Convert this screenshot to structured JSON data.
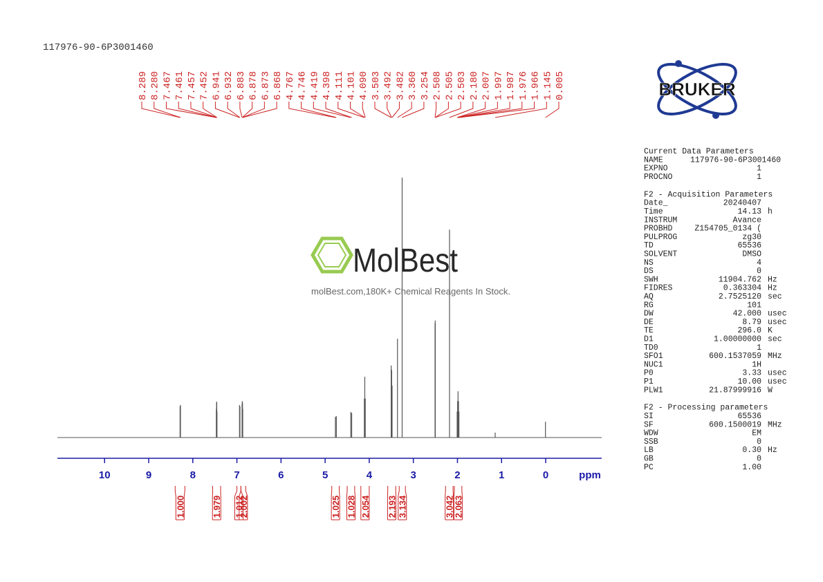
{
  "chart_data": {
    "type": "nmr",
    "title": "117976-90-6P3001460",
    "xlabel": "ppm",
    "xlim": [
      11.07,
      -1.27
    ],
    "xticks": [
      10,
      9,
      8,
      7,
      6,
      5,
      4,
      3,
      2,
      1,
      0
    ],
    "ylim": [
      0,
      100
    ],
    "color": "#555555",
    "label_color": "#cc2222",
    "axis_color": "#1a1aa8",
    "peaks": [
      {
        "value": 8.289,
        "label": "8.289"
      },
      {
        "value": 8.28,
        "label": "8.280"
      },
      {
        "value": 7.467,
        "label": "7.467"
      },
      {
        "value": 7.461,
        "label": "7.461"
      },
      {
        "value": 7.457,
        "label": "7.457"
      },
      {
        "value": 7.452,
        "label": "7.452"
      },
      {
        "value": 6.941,
        "label": "6.941"
      },
      {
        "value": 6.932,
        "label": "6.932"
      },
      {
        "value": 6.883,
        "label": "6.883"
      },
      {
        "value": 6.878,
        "label": "6.878"
      },
      {
        "value": 6.873,
        "label": "6.873"
      },
      {
        "value": 6.868,
        "label": "6.868"
      },
      {
        "value": 4.767,
        "label": "4.767"
      },
      {
        "value": 4.746,
        "label": "4.746"
      },
      {
        "value": 4.419,
        "label": "4.419"
      },
      {
        "value": 4.398,
        "label": "4.398"
      },
      {
        "value": 4.111,
        "label": "4.111"
      },
      {
        "value": 4.101,
        "label": "4.101"
      },
      {
        "value": 4.09,
        "label": "4.090"
      },
      {
        "value": 3.503,
        "label": "3.503"
      },
      {
        "value": 3.492,
        "label": "3.492"
      },
      {
        "value": 3.482,
        "label": "3.482"
      },
      {
        "value": 3.36,
        "label": "3.360"
      },
      {
        "value": 3.254,
        "label": "3.254"
      },
      {
        "value": 2.508,
        "label": "2.508"
      },
      {
        "value": 2.505,
        "label": "2.505"
      },
      {
        "value": 2.503,
        "label": "2.503"
      },
      {
        "value": 2.18,
        "label": "2.180"
      },
      {
        "value": 2.007,
        "label": "2.007"
      },
      {
        "value": 1.997,
        "label": "1.997"
      },
      {
        "value": 1.987,
        "label": "1.987"
      },
      {
        "value": 1.976,
        "label": "1.976"
      },
      {
        "value": 1.966,
        "label": "1.966"
      },
      {
        "value": 1.145,
        "label": "1.145"
      },
      {
        "value": 0.005,
        "label": "0.005"
      }
    ],
    "intensities": [
      12,
      12.5,
      11,
      13.8,
      13.5,
      10,
      12.5,
      12,
      13,
      14,
      13.5,
      11,
      8,
      8.2,
      9.8,
      9.5,
      15,
      23.4,
      15,
      27.7,
      26,
      20,
      38,
      100,
      44,
      45,
      44,
      80,
      10,
      14,
      17.8,
      14,
      10,
      1.9,
      6.1
    ],
    "integrals": [
      {
        "value": 1.0,
        "label": "1.000",
        "range": [
          8.4,
          8.18
        ]
      },
      {
        "value": 1.979,
        "label": "1.979",
        "range": [
          7.55,
          7.37
        ]
      },
      {
        "value": 1.012,
        "label": "1.012",
        "range": [
          7.0,
          6.91
        ]
      },
      {
        "value": 2.002,
        "label": "2.002",
        "range": [
          6.91,
          6.8
        ]
      },
      {
        "value": 1.025,
        "label": "1.025",
        "range": [
          4.85,
          4.68
        ]
      },
      {
        "value": 1.028,
        "label": "1.028",
        "range": [
          4.5,
          4.33
        ]
      },
      {
        "value": 2.054,
        "label": "2.054",
        "range": [
          4.19,
          4.0
        ]
      },
      {
        "value": 2.193,
        "label": "2.193",
        "range": [
          3.58,
          3.4
        ]
      },
      {
        "value": 3.134,
        "label": "3.134",
        "range": [
          3.32,
          3.18
        ]
      },
      {
        "value": 3.042,
        "label": "3.042",
        "range": [
          2.27,
          2.1
        ]
      },
      {
        "value": 2.063,
        "label": "2.063",
        "range": [
          2.07,
          1.9
        ]
      }
    ]
  },
  "logo": "BRUKER",
  "watermark": {
    "brand": "MolBest",
    "tagline": "molBest.com,180K+ Chemical Reagents In Stock."
  },
  "parameters": [
    {
      "title": "Current Data Parameters",
      "rows": [
        [
          "NAME",
          "117976-90-6P3001460"
        ],
        [
          "EXPNO",
          "1"
        ],
        [
          "PROCNO",
          "1"
        ]
      ]
    },
    {
      "title": "F2 - Acquisition Parameters",
      "rows": [
        [
          "Date_",
          "20240407"
        ],
        [
          "Time",
          "14.13",
          "h"
        ],
        [
          "INSTRUM",
          "Avance"
        ],
        [
          "PROBHD",
          "Z154705_0134 ("
        ],
        [
          "PULPROG",
          "zg30"
        ],
        [
          "TD",
          "65536"
        ],
        [
          "SOLVENT",
          "DMSO"
        ],
        [
          "NS",
          "4"
        ],
        [
          "DS",
          "0"
        ],
        [
          "SWH",
          "11904.762",
          "Hz"
        ],
        [
          "FIDRES",
          "0.363304",
          "Hz"
        ],
        [
          "AQ",
          "2.7525120",
          "sec"
        ],
        [
          "RG",
          "101"
        ],
        [
          "DW",
          "42.000",
          "usec"
        ],
        [
          "DE",
          "8.79",
          "usec"
        ],
        [
          "TE",
          "296.0",
          "K"
        ],
        [
          "D1",
          "1.00000000",
          "sec"
        ],
        [
          "TD0",
          "1"
        ],
        [
          "SFO1",
          "600.1537059",
          "MHz"
        ],
        [
          "NUC1",
          "1H"
        ],
        [
          "P0",
          "3.33",
          "usec"
        ],
        [
          "P1",
          "10.00",
          "usec"
        ],
        [
          "PLW1",
          "21.87999916",
          "W"
        ]
      ]
    },
    {
      "title": "F2 - Processing parameters",
      "rows": [
        [
          "SI",
          "65536"
        ],
        [
          "SF",
          "600.1500019",
          "MHz"
        ],
        [
          "WDW",
          "EM"
        ],
        [
          "SSB",
          "0"
        ],
        [
          "LB",
          "0.30",
          "Hz"
        ],
        [
          "GB",
          "0"
        ],
        [
          "PC",
          "1.00"
        ]
      ]
    }
  ]
}
